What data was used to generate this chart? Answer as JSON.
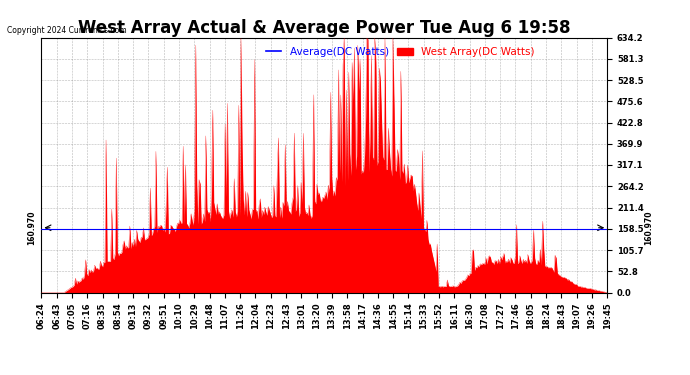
{
  "title": "West Array Actual & Average Power Tue Aug 6 19:58",
  "copyright": "Copyright 2024 Curtronics.com",
  "legend_avg": "Average(DC Watts)",
  "legend_west": "West Array(DC Watts)",
  "legend_avg_color": "blue",
  "legend_west_color": "red",
  "ymin": 0.0,
  "ymax": 634.2,
  "yticks": [
    0.0,
    52.8,
    105.7,
    158.5,
    211.4,
    264.2,
    317.1,
    369.9,
    422.8,
    475.6,
    528.5,
    581.3,
    634.2
  ],
  "hline_y": 160.97,
  "hline_label": "160.970",
  "avg_line_y": 158.5,
  "bg_color": "#ffffff",
  "plot_bg_color": "#ffffff",
  "grid_color": "#888888",
  "title_fontsize": 12,
  "tick_fontsize": 6.0,
  "xtick_labels": [
    "06:24",
    "06:43",
    "07:05",
    "07:16",
    "08:35",
    "08:54",
    "09:13",
    "09:32",
    "09:51",
    "10:10",
    "10:29",
    "10:48",
    "11:07",
    "11:26",
    "12:04",
    "12:23",
    "12:43",
    "13:01",
    "13:20",
    "13:39",
    "13:58",
    "14:17",
    "14:36",
    "14:55",
    "15:14",
    "15:33",
    "15:52",
    "16:11",
    "16:30",
    "17:08",
    "17:27",
    "17:46",
    "18:05",
    "18:24",
    "18:43",
    "19:07",
    "19:26",
    "19:45"
  ],
  "num_points": 500,
  "seed": 99
}
